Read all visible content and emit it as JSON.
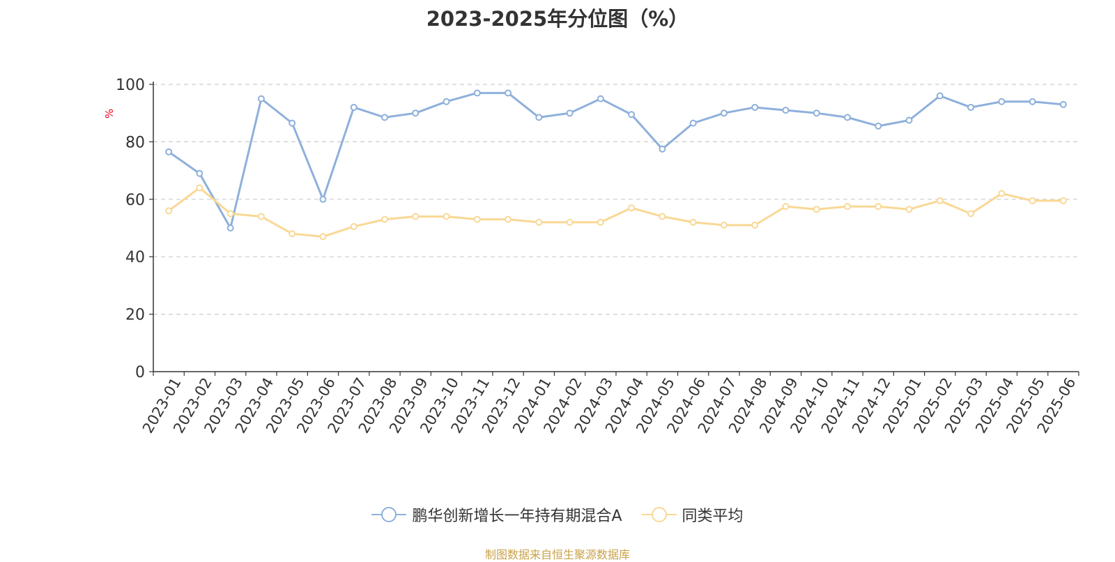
{
  "chart_data": {
    "type": "line",
    "title": "2023-2025年分位图（%）",
    "ylabel": "%",
    "ylim": [
      0,
      100
    ],
    "yticks": [
      0,
      20,
      40,
      60,
      80,
      100
    ],
    "grid": true,
    "legend_position": "bottom",
    "categories": [
      "2023-01",
      "2023-02",
      "2023-03",
      "2023-04",
      "2023-05",
      "2023-06",
      "2023-07",
      "2023-08",
      "2023-09",
      "2023-10",
      "2023-11",
      "2023-12",
      "2024-01",
      "2024-02",
      "2024-03",
      "2024-04",
      "2024-05",
      "2024-06",
      "2024-07",
      "2024-08",
      "2024-09",
      "2024-10",
      "2024-11",
      "2024-12",
      "2025-01",
      "2025-02",
      "2025-03",
      "2025-04",
      "2025-05",
      "2025-06"
    ],
    "series": [
      {
        "name": "鹏华创新增长一年持有期混合A",
        "color": "#8eb0db",
        "values": [
          76.5,
          69.0,
          50.0,
          95.0,
          86.5,
          60.0,
          92.0,
          88.5,
          90.0,
          94.0,
          97.0,
          97.0,
          88.5,
          90.0,
          95.0,
          89.5,
          77.5,
          86.5,
          90.0,
          92.0,
          91.0,
          90.0,
          88.5,
          85.5,
          87.5,
          96.0,
          92.0,
          94.0,
          94.0,
          93.0
        ]
      },
      {
        "name": "同类平均",
        "color": "#f9d895",
        "values": [
          56.0,
          64.0,
          55.0,
          54.0,
          48.0,
          47.0,
          50.5,
          53.0,
          54.0,
          54.0,
          53.0,
          53.0,
          52.0,
          52.0,
          52.0,
          57.0,
          54.0,
          52.0,
          51.0,
          51.0,
          57.5,
          56.5,
          57.5,
          57.5,
          56.5,
          59.5,
          55.0,
          62.0,
          59.5,
          59.5
        ]
      }
    ]
  },
  "source_note": "制图数据来自恒生聚源数据库"
}
